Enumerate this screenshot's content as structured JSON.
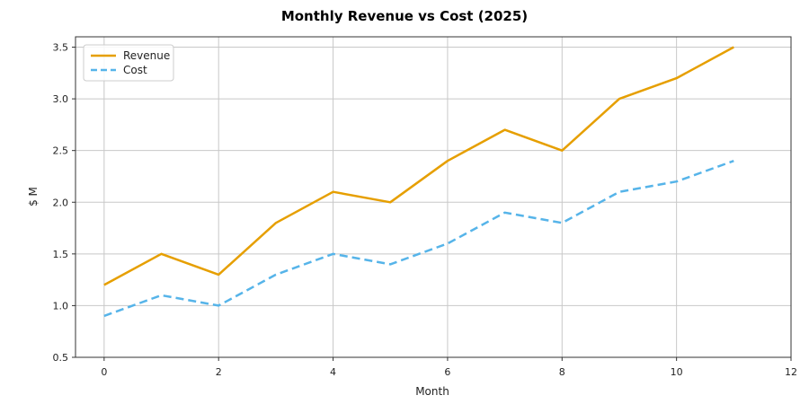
{
  "chart_data": {
    "type": "line",
    "title": "Monthly Revenue vs Cost (2025)",
    "xlabel": "Month",
    "ylabel": "$ M",
    "xlim": [
      -0.5,
      12
    ],
    "ylim": [
      0.5,
      3.6
    ],
    "xticks": [
      0,
      2,
      4,
      6,
      8,
      10,
      12
    ],
    "yticks": [
      0.5,
      1.0,
      1.5,
      2.0,
      2.5,
      3.0,
      3.5
    ],
    "ytick_labels": [
      "0.5",
      "1.0",
      "1.5",
      "2.0",
      "2.5",
      "3.0",
      "3.5"
    ],
    "grid": true,
    "legend": "top-left",
    "x": [
      0,
      1,
      2,
      3,
      4,
      5,
      6,
      7,
      8,
      9,
      10,
      11
    ],
    "series": [
      {
        "name": "Revenue",
        "color": "#E69F00",
        "dash": "solid",
        "values": [
          1.2,
          1.5,
          1.3,
          1.8,
          2.1,
          2.0,
          2.4,
          2.7,
          2.5,
          3.0,
          3.2,
          3.5
        ]
      },
      {
        "name": "Cost",
        "color": "#56B4E9",
        "dash": "dashed",
        "values": [
          0.9,
          1.1,
          1.0,
          1.3,
          1.5,
          1.4,
          1.6,
          1.9,
          1.8,
          2.1,
          2.2,
          2.4
        ]
      }
    ]
  }
}
